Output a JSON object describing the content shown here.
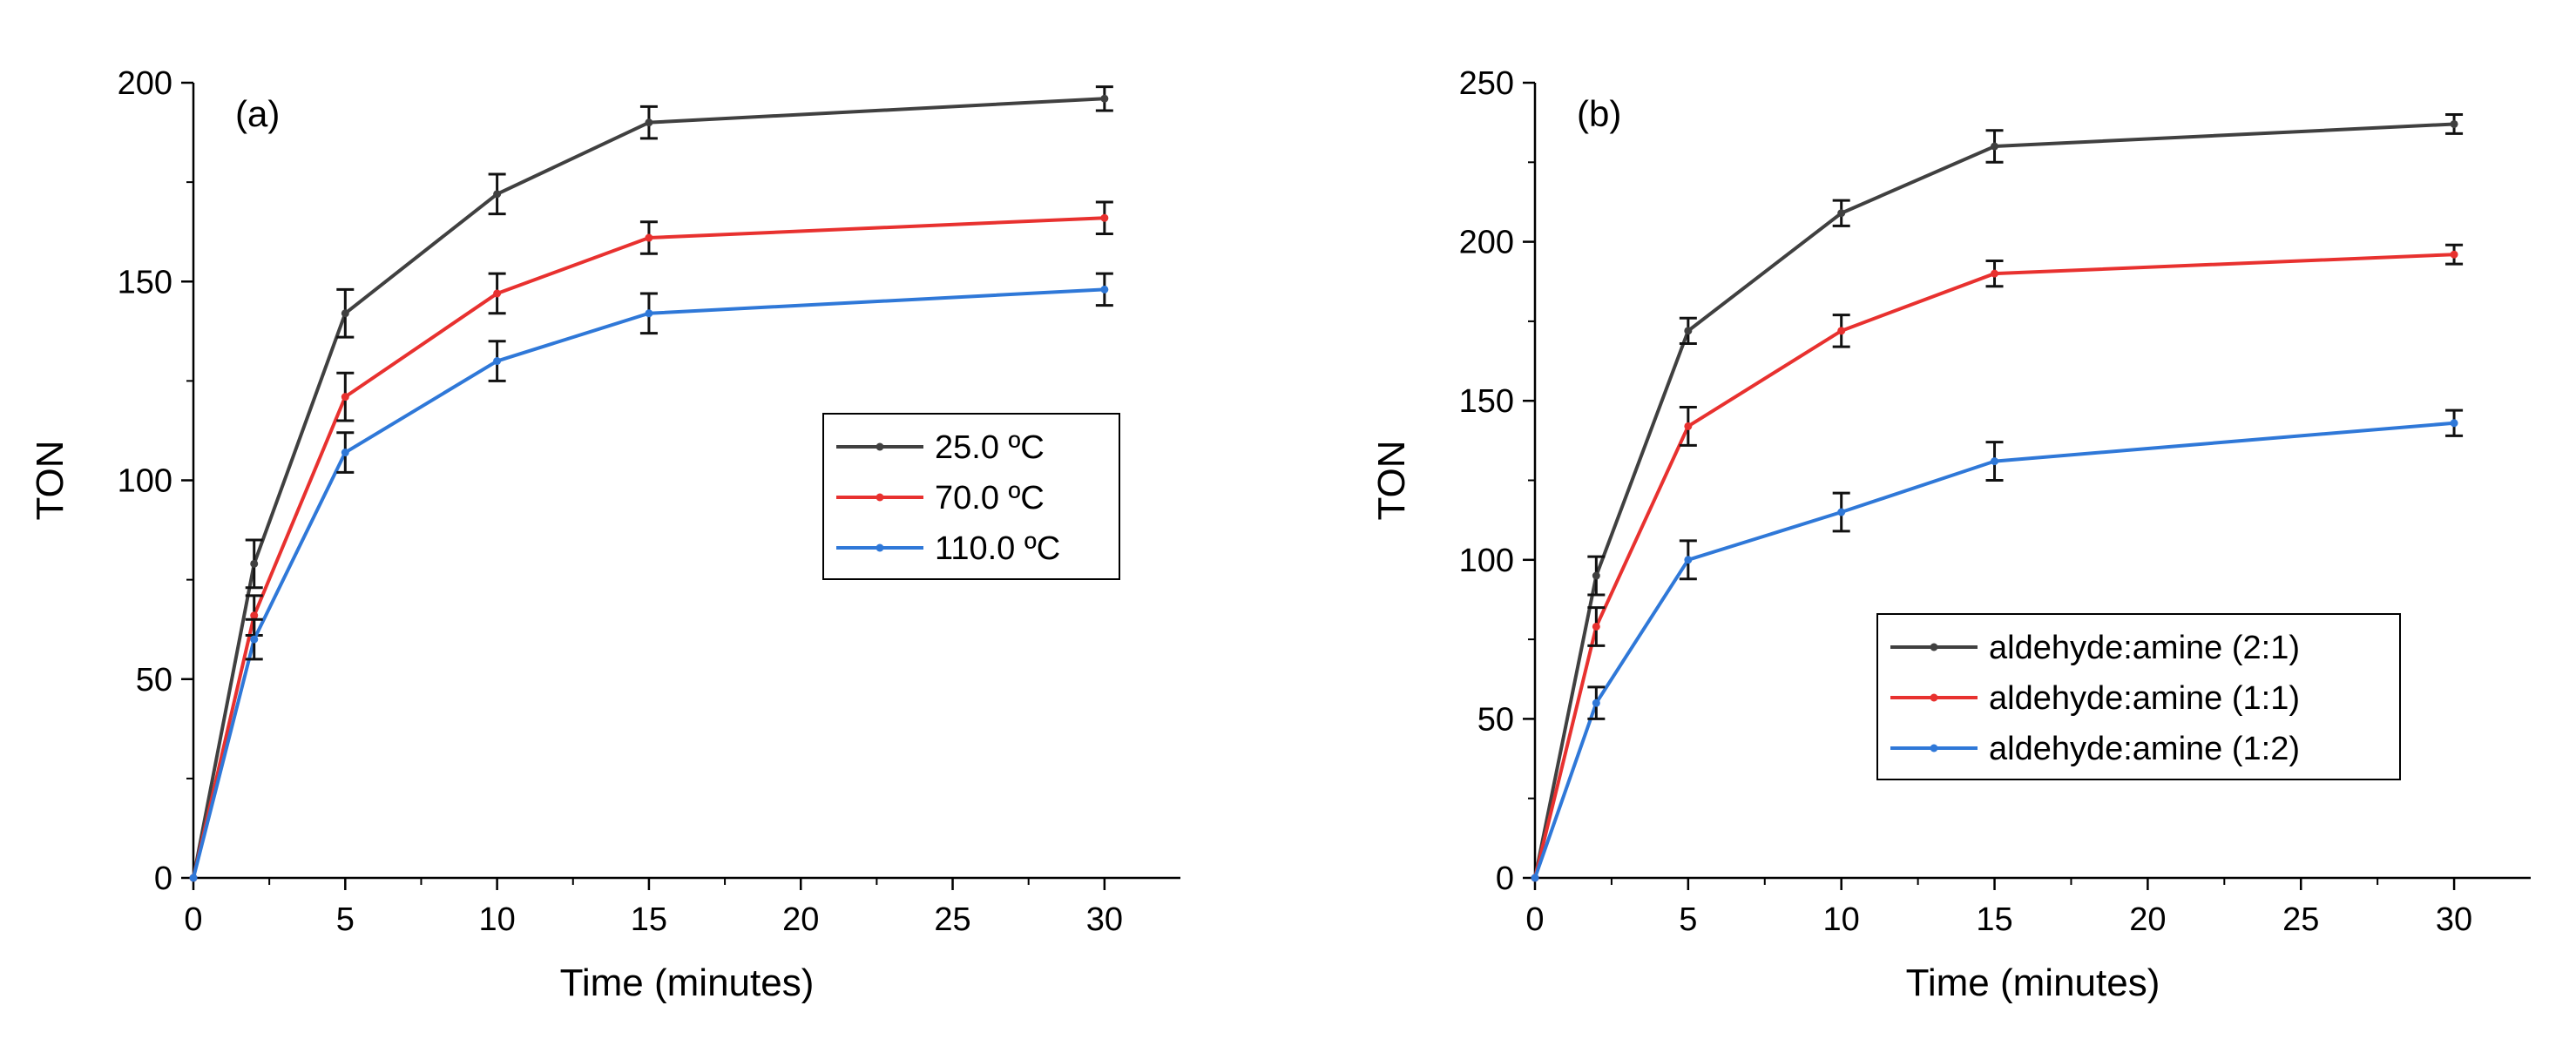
{
  "chart_data": [
    {
      "type": "line",
      "panel_label": "(a)",
      "xlabel": "Time (minutes)",
      "ylabel": "TON",
      "xlim": [
        0,
        32.5
      ],
      "ylim": [
        0,
        200
      ],
      "xticks": [
        0,
        5,
        10,
        15,
        20,
        25,
        30
      ],
      "yticks": [
        0,
        50,
        100,
        150,
        200
      ],
      "x": [
        0,
        2,
        5,
        10,
        15,
        30
      ],
      "legend_position": "middle-right",
      "series": [
        {
          "name": "25.0 ºC",
          "color": "#404040",
          "values": [
            0,
            79,
            142,
            172,
            190,
            196
          ],
          "errors": [
            0,
            6,
            6,
            5,
            4,
            3
          ]
        },
        {
          "name": "70.0 ºC",
          "color": "#e8312f",
          "values": [
            0,
            66,
            121,
            147,
            161,
            166
          ],
          "errors": [
            0,
            5,
            6,
            5,
            4,
            4
          ]
        },
        {
          "name": "110.0 ºC",
          "color": "#2f78d8",
          "values": [
            0,
            60,
            107,
            130,
            142,
            148
          ],
          "errors": [
            0,
            5,
            5,
            5,
            5,
            4
          ]
        }
      ]
    },
    {
      "type": "line",
      "panel_label": "(b)",
      "xlabel": "Time (minutes)",
      "ylabel": "TON",
      "xlim": [
        0,
        32.5
      ],
      "ylim": [
        0,
        250
      ],
      "xticks": [
        0,
        5,
        10,
        15,
        20,
        25,
        30
      ],
      "yticks": [
        0,
        50,
        100,
        150,
        200,
        250
      ],
      "x": [
        0,
        2,
        5,
        10,
        15,
        30
      ],
      "legend_position": "bottom-right",
      "series": [
        {
          "name": "aldehyde:amine (2:1)",
          "color": "#404040",
          "values": [
            0,
            95,
            172,
            209,
            230,
            237
          ],
          "errors": [
            0,
            6,
            4,
            4,
            5,
            3
          ]
        },
        {
          "name": "aldehyde:amine (1:1)",
          "color": "#e8312f",
          "values": [
            0,
            79,
            142,
            172,
            190,
            196
          ],
          "errors": [
            0,
            6,
            6,
            5,
            4,
            3
          ]
        },
        {
          "name": "aldehyde:amine (1:2)",
          "color": "#2f78d8",
          "values": [
            0,
            55,
            100,
            115,
            131,
            143
          ],
          "errors": [
            0,
            5,
            6,
            6,
            6,
            4
          ]
        }
      ]
    }
  ]
}
